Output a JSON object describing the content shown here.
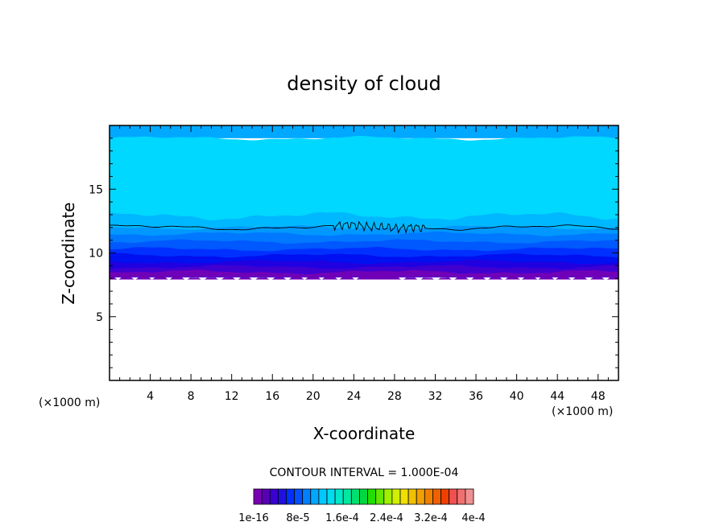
{
  "chart_data": {
    "type": "heatmap",
    "title": "density of cloud",
    "xlabel": "X-coordinate",
    "ylabel": "Z-coordinate",
    "x_unit_left": "(×1000 m)",
    "x_unit_right": "(×1000 m)",
    "xlim": [
      0,
      50
    ],
    "ylim": [
      0,
      20
    ],
    "x_ticks": [
      4,
      8,
      12,
      16,
      20,
      24,
      28,
      32,
      36,
      40,
      44,
      48
    ],
    "y_ticks": [
      5,
      10,
      15
    ],
    "contour_interval_text": "CONTOUR INTERVAL = 1.000E-04",
    "colorbar": {
      "colors": [
        "#7a00b4",
        "#5a00b4",
        "#3a00d0",
        "#2010e0",
        "#0030ff",
        "#0050ff",
        "#0080ff",
        "#00a8ff",
        "#00c8ff",
        "#00dcf0",
        "#00e8c8",
        "#00e8a0",
        "#00e070",
        "#00d840",
        "#20e000",
        "#60e800",
        "#a0f000",
        "#d0f000",
        "#f0e000",
        "#f0c000",
        "#f0a000",
        "#f08000",
        "#f06000",
        "#f04000",
        "#f05050",
        "#f07070",
        "#f09090"
      ],
      "tick_labels": [
        "1e-16",
        "8e-5",
        "1.6e-4",
        "2.4e-4",
        "3.2e-4",
        "4e-4"
      ]
    },
    "bands": [
      {
        "z": 19.7,
        "color": "#00a8ff"
      },
      {
        "z": 19.0,
        "color": "#00d8ff"
      },
      {
        "z": 12.9,
        "color": "#00b8ff"
      },
      {
        "z": 12.0,
        "color": "#0098ff"
      },
      {
        "z": 11.5,
        "color": "#0078ff"
      },
      {
        "z": 10.9,
        "color": "#0058ff"
      },
      {
        "z": 10.3,
        "color": "#0030ff"
      },
      {
        "z": 9.8,
        "color": "#0010f0"
      },
      {
        "z": 9.3,
        "color": "#2000e0"
      },
      {
        "z": 8.9,
        "color": "#4000d0"
      },
      {
        "z": 8.5,
        "color": "#7000b8"
      }
    ],
    "cloud_base_z": 8.1,
    "contour_line_z": 12.0
  }
}
